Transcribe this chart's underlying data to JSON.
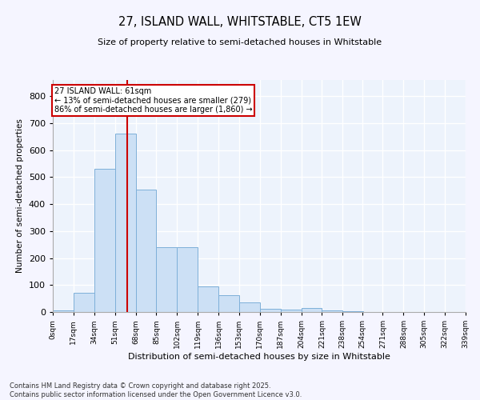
{
  "title": "27, ISLAND WALL, WHITSTABLE, CT5 1EW",
  "subtitle": "Size of property relative to semi-detached houses in Whitstable",
  "xlabel": "Distribution of semi-detached houses by size in Whitstable",
  "ylabel": "Number of semi-detached properties",
  "footnote": "Contains HM Land Registry data © Crown copyright and database right 2025.\nContains public sector information licensed under the Open Government Licence v3.0.",
  "bar_color": "#cce0f5",
  "bar_edge_color": "#7eb0d9",
  "background_color": "#edf3fc",
  "grid_color": "#ffffff",
  "property_sqm": 61,
  "property_label": "27 ISLAND WALL: 61sqm",
  "annotation_line1": "← 13% of semi-detached houses are smaller (279)",
  "annotation_line2": "86% of semi-detached houses are larger (1,860) →",
  "annotation_box_color": "#ffffff",
  "annotation_box_edge": "#cc0000",
  "vline_color": "#cc0000",
  "bin_edges": [
    0,
    17,
    34,
    51,
    68,
    85,
    102,
    119,
    136,
    153,
    170,
    187,
    204,
    221,
    238,
    254,
    271,
    288,
    305,
    322,
    339
  ],
  "bar_heights": [
    5,
    70,
    530,
    660,
    455,
    240,
    240,
    95,
    62,
    37,
    13,
    10,
    15,
    6,
    2,
    0,
    0,
    0,
    0,
    0
  ],
  "ylim": [
    0,
    860
  ],
  "yticks": [
    0,
    100,
    200,
    300,
    400,
    500,
    600,
    700,
    800
  ],
  "tick_labels": [
    "0sqm",
    "17sqm",
    "34sqm",
    "51sqm",
    "68sqm",
    "85sqm",
    "102sqm",
    "119sqm",
    "136sqm",
    "153sqm",
    "170sqm",
    "187sqm",
    "204sqm",
    "221sqm",
    "238sqm",
    "254sqm",
    "271sqm",
    "288sqm",
    "305sqm",
    "322sqm",
    "339sqm"
  ]
}
